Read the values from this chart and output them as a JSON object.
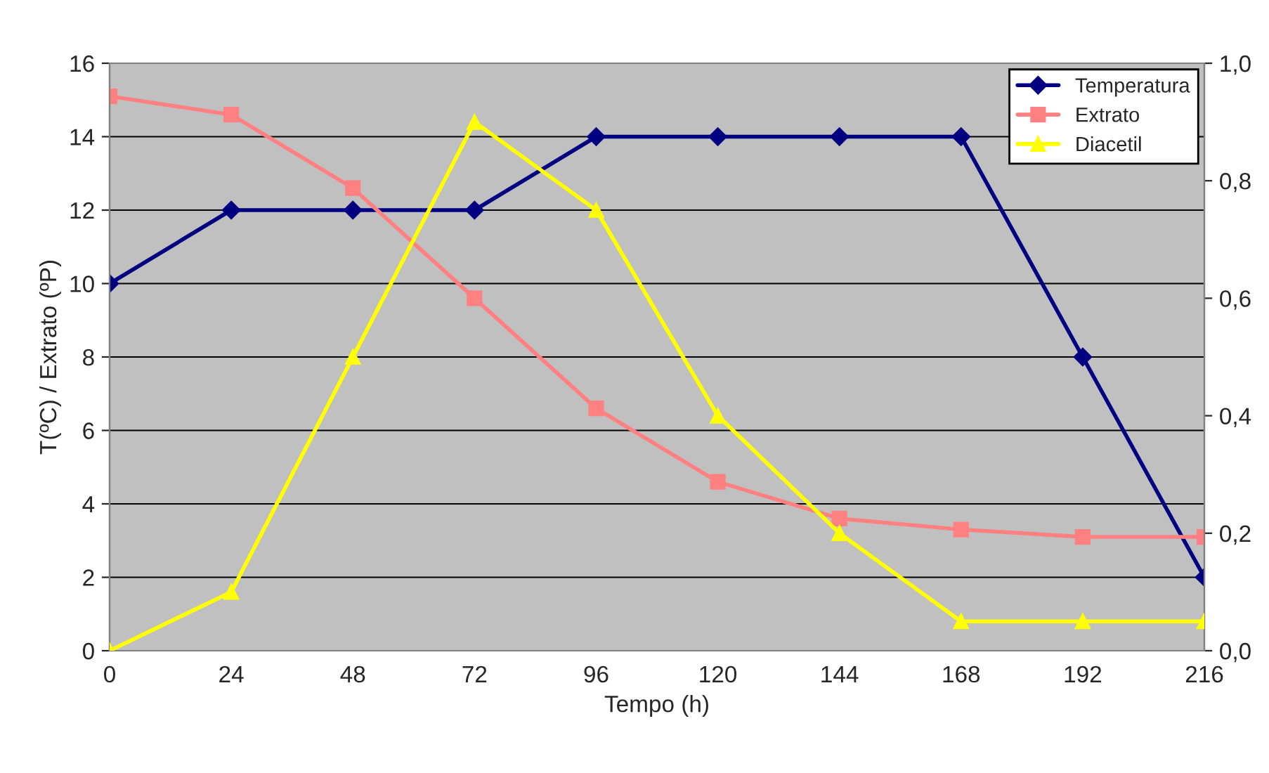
{
  "chart_data": {
    "type": "line",
    "xlabel": "Tempo (h)",
    "ylabel": "T(ºC) / Extrato (ºP)",
    "x": [
      0,
      24,
      48,
      72,
      96,
      120,
      144,
      168,
      192,
      216
    ],
    "series": [
      {
        "name": "Temperatura",
        "color": "#000080",
        "marker": "diamond",
        "values": [
          10,
          12,
          12,
          12,
          14,
          14,
          14,
          14,
          8,
          2
        ]
      },
      {
        "name": "Extrato",
        "color": "#ff8080",
        "marker": "square",
        "values": [
          15.1,
          14.6,
          12.6,
          9.6,
          6.6,
          4.6,
          3.6,
          3.3,
          3.1,
          3.1
        ]
      },
      {
        "name": "Diacetil",
        "color": "#ffff00",
        "marker": "triangle",
        "axis": "y2",
        "values": [
          0.0,
          0.1,
          0.5,
          0.9,
          0.75,
          0.4,
          0.2,
          0.05,
          0.05,
          0.05
        ]
      }
    ],
    "xlim": [
      0,
      216
    ],
    "xticks": [
      0,
      24,
      48,
      72,
      96,
      120,
      144,
      168,
      192,
      216
    ],
    "ylim": [
      0,
      16
    ],
    "yticks": [
      0,
      2,
      4,
      6,
      8,
      10,
      12,
      14,
      16
    ],
    "y2lim": [
      0,
      1
    ],
    "y2ticks": [
      {
        "value": 0,
        "label": "0,0"
      },
      {
        "value": 0.2,
        "label": "0,2"
      },
      {
        "value": 0.4,
        "label": "0,4"
      },
      {
        "value": 0.6,
        "label": "0,6"
      },
      {
        "value": 0.8,
        "label": "0,8"
      },
      {
        "value": 1,
        "label": "1,0"
      }
    ],
    "grid": "y",
    "legend": "top right"
  }
}
